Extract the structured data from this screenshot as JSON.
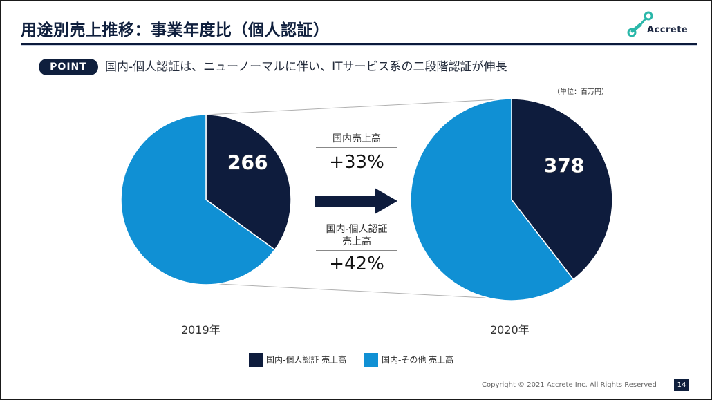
{
  "header": {
    "title": "用途別売上推移：事業年度比（個人認証）",
    "logo_text": "Accrete",
    "logo_icon": "chain-link-icon"
  },
  "point": {
    "badge": "POINT",
    "text": "国内-個人認証は、ニューノーマルに伴い、ITサービス系の二段階認証が伸長"
  },
  "unit_label": "（単位：百万円）",
  "colors": {
    "navy": "#0e1c3d",
    "blue": "#1090d4",
    "connector": "#b0b0b0"
  },
  "chart_data": [
    {
      "type": "pie",
      "year_label": "2019年",
      "slices": [
        {
          "name": "国内-個人認証 売上高",
          "share": 0.35,
          "color": "#0e1c3d",
          "label": "266"
        },
        {
          "name": "国内-その他 売上高",
          "share": 0.65,
          "color": "#1090d4"
        }
      ]
    },
    {
      "type": "pie",
      "year_label": "2020年",
      "slices": [
        {
          "name": "国内-個人認証 売上高",
          "share": 0.395,
          "color": "#0e1c3d",
          "label": "378"
        },
        {
          "name": "国内-その他 売上高",
          "share": 0.605,
          "color": "#1090d4"
        }
      ]
    }
  ],
  "growth": {
    "domestic_label": "国内売上高",
    "domestic_value": "+33%",
    "personal_label_line1": "国内-個人認証",
    "personal_label_line2": "売上高",
    "personal_value": "+42%"
  },
  "legend": [
    {
      "label": "国内-個人認証 売上高",
      "color": "#0e1c3d"
    },
    {
      "label": "国内-その他 売上高",
      "color": "#1090d4"
    }
  ],
  "footer": {
    "copyright": "Copyright © 2021 Accrete Inc. All Rights Reserved",
    "page_number": "14"
  }
}
